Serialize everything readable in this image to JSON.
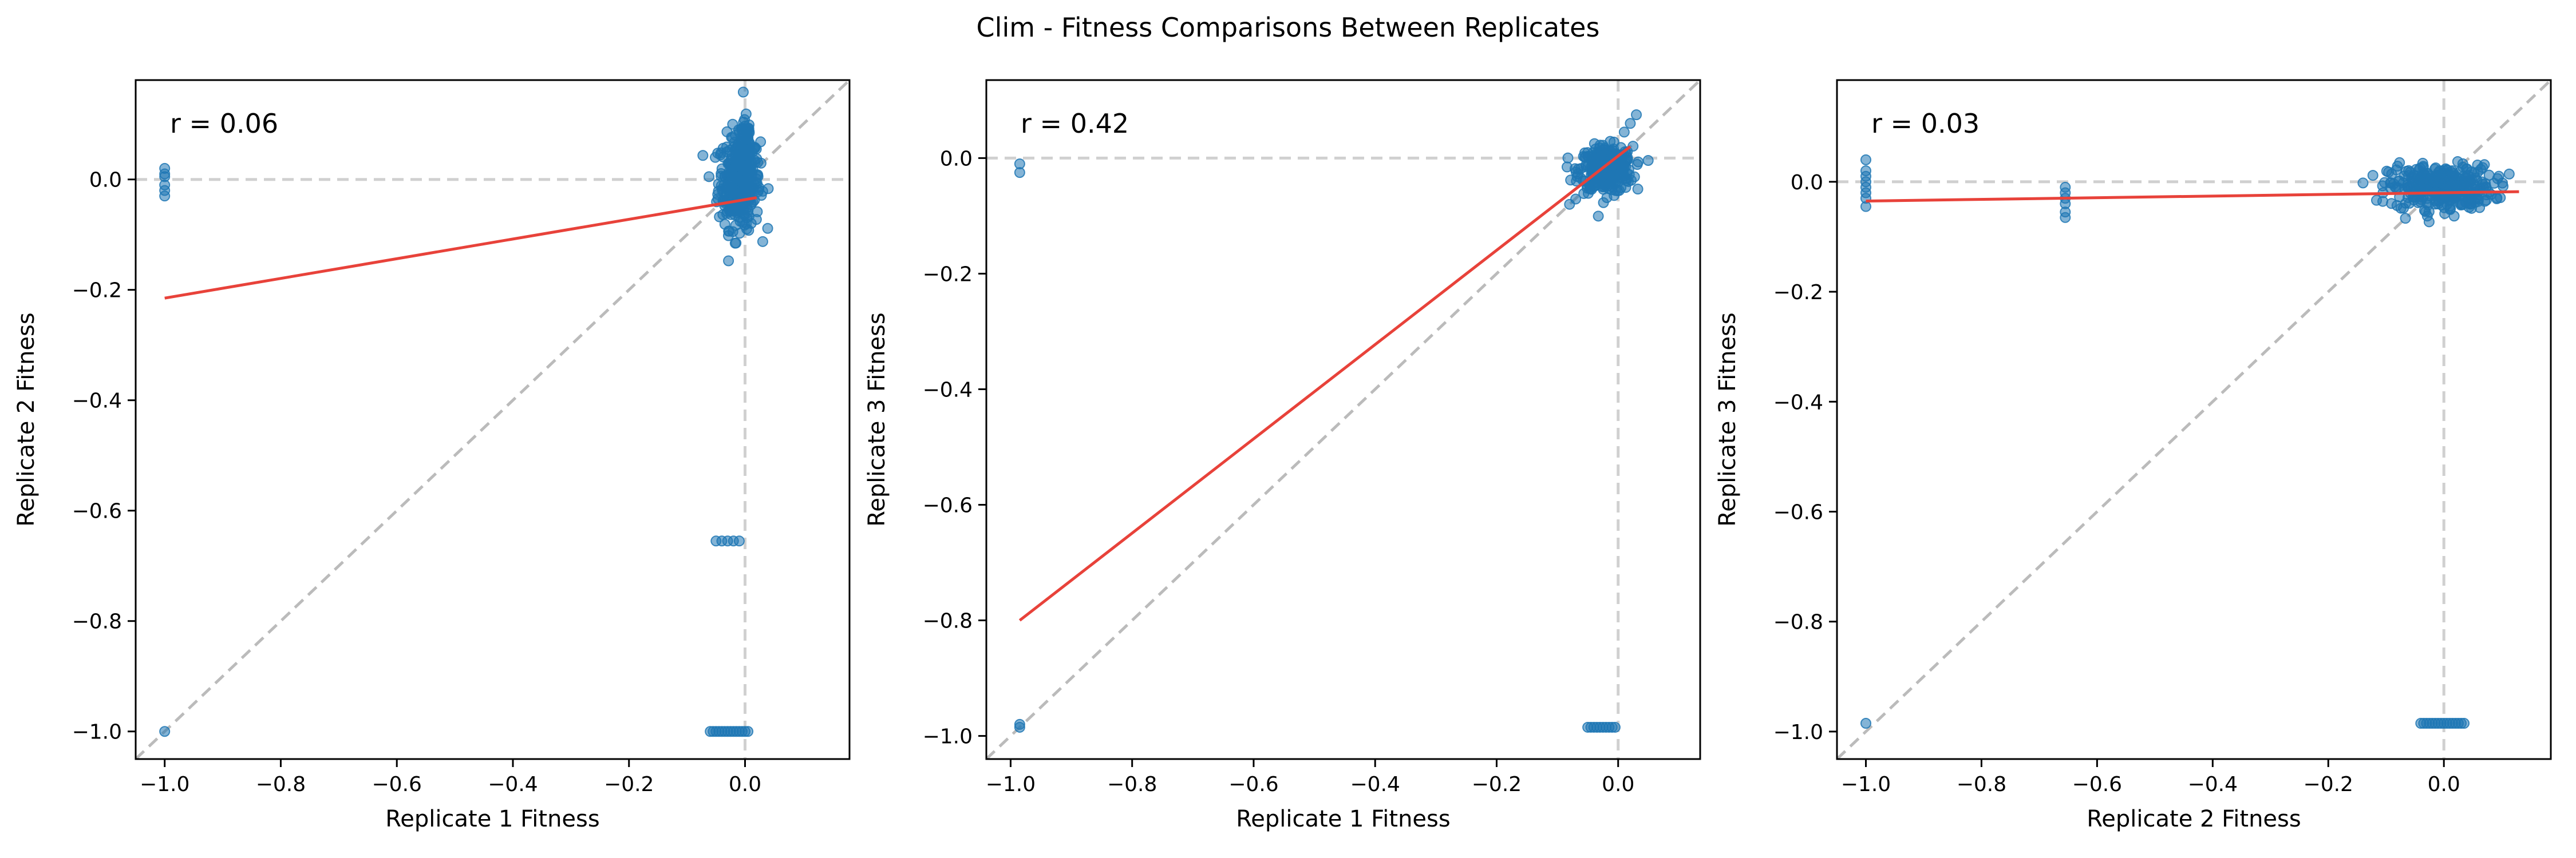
{
  "figure": {
    "title": "Clim - Fitness Comparisons Between Replicates"
  },
  "style": {
    "point_color": "#1f77b4",
    "fit_color": "#e8423a",
    "ref_color": "#bbbbbb"
  },
  "chart_data": [
    {
      "type": "scatter",
      "title": "",
      "xlabel": "Replicate 1 Fitness",
      "ylabel": "Replicate 2 Fitness",
      "xlim": [
        -1.05,
        0.18
      ],
      "ylim": [
        -1.05,
        0.18
      ],
      "xticks": [
        -1.0,
        -0.8,
        -0.6,
        -0.4,
        -0.2,
        0.0
      ],
      "yticks": [
        -1.0,
        -0.8,
        -0.6,
        -0.4,
        -0.2,
        0.0
      ],
      "xtick_labels": [
        "−1.0",
        "−0.8",
        "−0.6",
        "−0.4",
        "−0.2",
        "0.0"
      ],
      "ytick_labels": [
        "−1.0",
        "−0.8",
        "−0.6",
        "−0.4",
        "−0.2",
        "0.0"
      ],
      "annotation": "r = 0.06",
      "fit_line": [
        [
          -1.0,
          -0.215
        ],
        [
          0.02,
          -0.033
        ]
      ],
      "clusters": [
        {
          "cx": -0.01,
          "cy": -0.005,
          "sx": 0.018,
          "sy": 0.042,
          "n": 320
        },
        {
          "cx": 0.0,
          "cy": 0.06,
          "sx": 0.007,
          "sy": 0.03,
          "n": 60
        }
      ],
      "points": [
        [
          -1.0,
          0.02
        ],
        [
          -1.0,
          0.01
        ],
        [
          -1.0,
          0.005
        ],
        [
          -1.0,
          -0.01
        ],
        [
          -1.0,
          -0.02
        ],
        [
          -1.0,
          -0.03
        ],
        [
          -1.0,
          -1.0
        ],
        [
          -0.05,
          -0.655
        ],
        [
          -0.04,
          -0.655
        ],
        [
          -0.03,
          -0.655
        ],
        [
          -0.02,
          -0.655
        ],
        [
          -0.01,
          -0.655
        ],
        [
          -0.06,
          -1.0
        ],
        [
          -0.055,
          -1.0
        ],
        [
          -0.05,
          -1.0
        ],
        [
          -0.045,
          -1.0
        ],
        [
          -0.04,
          -1.0
        ],
        [
          -0.035,
          -1.0
        ],
        [
          -0.03,
          -1.0
        ],
        [
          -0.025,
          -1.0
        ],
        [
          -0.02,
          -1.0
        ],
        [
          -0.015,
          -1.0
        ],
        [
          -0.01,
          -1.0
        ],
        [
          -0.005,
          -1.0
        ],
        [
          0.0,
          -1.0
        ],
        [
          0.005,
          -1.0
        ]
      ]
    },
    {
      "type": "scatter",
      "title": "",
      "xlabel": "Replicate 1 Fitness",
      "ylabel": "Replicate 3 Fitness",
      "xlim": [
        -1.04,
        0.135
      ],
      "ylim": [
        -1.04,
        0.135
      ],
      "xticks": [
        -1.0,
        -0.8,
        -0.6,
        -0.4,
        -0.2,
        0.0
      ],
      "yticks": [
        -1.0,
        -0.8,
        -0.6,
        -0.4,
        -0.2,
        0.0
      ],
      "xtick_labels": [
        "−1.0",
        "−0.8",
        "−0.6",
        "−0.4",
        "−0.2",
        "0.0"
      ],
      "ytick_labels": [
        "−1.0",
        "−0.8",
        "−0.6",
        "−0.4",
        "−0.2",
        "0.0"
      ],
      "annotation": "r = 0.42",
      "fit_line": [
        [
          -0.985,
          -0.8
        ],
        [
          0.02,
          0.02
        ]
      ],
      "clusters": [
        {
          "cx": -0.02,
          "cy": -0.02,
          "sx": 0.022,
          "sy": 0.02,
          "n": 320
        }
      ],
      "points": [
        [
          -0.985,
          -0.01
        ],
        [
          -0.985,
          -0.025
        ],
        [
          -0.985,
          -0.98
        ],
        [
          -0.985,
          -0.985
        ],
        [
          0.02,
          0.06
        ],
        [
          0.03,
          0.075
        ],
        [
          -0.08,
          -0.08
        ],
        [
          0.01,
          0.045
        ],
        [
          -0.05,
          -0.985
        ],
        [
          -0.045,
          -0.985
        ],
        [
          -0.04,
          -0.985
        ],
        [
          -0.035,
          -0.985
        ],
        [
          -0.03,
          -0.985
        ],
        [
          -0.025,
          -0.985
        ],
        [
          -0.02,
          -0.985
        ],
        [
          -0.015,
          -0.985
        ],
        [
          -0.01,
          -0.985
        ],
        [
          -0.005,
          -0.985
        ]
      ]
    },
    {
      "type": "scatter",
      "title": "",
      "xlabel": "Replicate 2 Fitness",
      "ylabel": "Replicate 3 Fitness",
      "xlim": [
        -1.05,
        0.185
      ],
      "ylim": [
        -1.05,
        0.185
      ],
      "xticks": [
        -1.0,
        -0.8,
        -0.6,
        -0.4,
        -0.2,
        0.0
      ],
      "yticks": [
        -1.0,
        -0.8,
        -0.6,
        -0.4,
        -0.2,
        0.0
      ],
      "xtick_labels": [
        "−1.0",
        "−0.8",
        "−0.6",
        "−0.4",
        "−0.2",
        "0.0"
      ],
      "ytick_labels": [
        "−1.0",
        "−0.8",
        "−0.6",
        "−0.4",
        "−0.2",
        "0.0"
      ],
      "annotation": "r = 0.03",
      "fit_line": [
        [
          -1.0,
          -0.035
        ],
        [
          0.13,
          -0.018
        ]
      ],
      "clusters": [
        {
          "cx": -0.005,
          "cy": -0.01,
          "sx": 0.045,
          "sy": 0.02,
          "n": 360
        }
      ],
      "points": [
        [
          -1.0,
          0.04
        ],
        [
          -1.0,
          0.02
        ],
        [
          -1.0,
          0.01
        ],
        [
          -1.0,
          0.0
        ],
        [
          -1.0,
          -0.01
        ],
        [
          -1.0,
          -0.02
        ],
        [
          -1.0,
          -0.03
        ],
        [
          -1.0,
          -0.045
        ],
        [
          -1.0,
          -0.985
        ],
        [
          -0.655,
          -0.01
        ],
        [
          -0.655,
          -0.02
        ],
        [
          -0.655,
          -0.03
        ],
        [
          -0.655,
          -0.04
        ],
        [
          -0.655,
          -0.055
        ],
        [
          -0.655,
          -0.065
        ],
        [
          -0.04,
          -0.985
        ],
        [
          -0.035,
          -0.985
        ],
        [
          -0.03,
          -0.985
        ],
        [
          -0.025,
          -0.985
        ],
        [
          -0.02,
          -0.985
        ],
        [
          -0.015,
          -0.985
        ],
        [
          -0.01,
          -0.985
        ],
        [
          -0.005,
          -0.985
        ],
        [
          0.0,
          -0.985
        ],
        [
          0.005,
          -0.985
        ],
        [
          0.01,
          -0.985
        ],
        [
          0.015,
          -0.985
        ],
        [
          0.02,
          -0.985
        ],
        [
          0.025,
          -0.985
        ],
        [
          0.03,
          -0.985
        ],
        [
          0.035,
          -0.985
        ]
      ]
    }
  ]
}
